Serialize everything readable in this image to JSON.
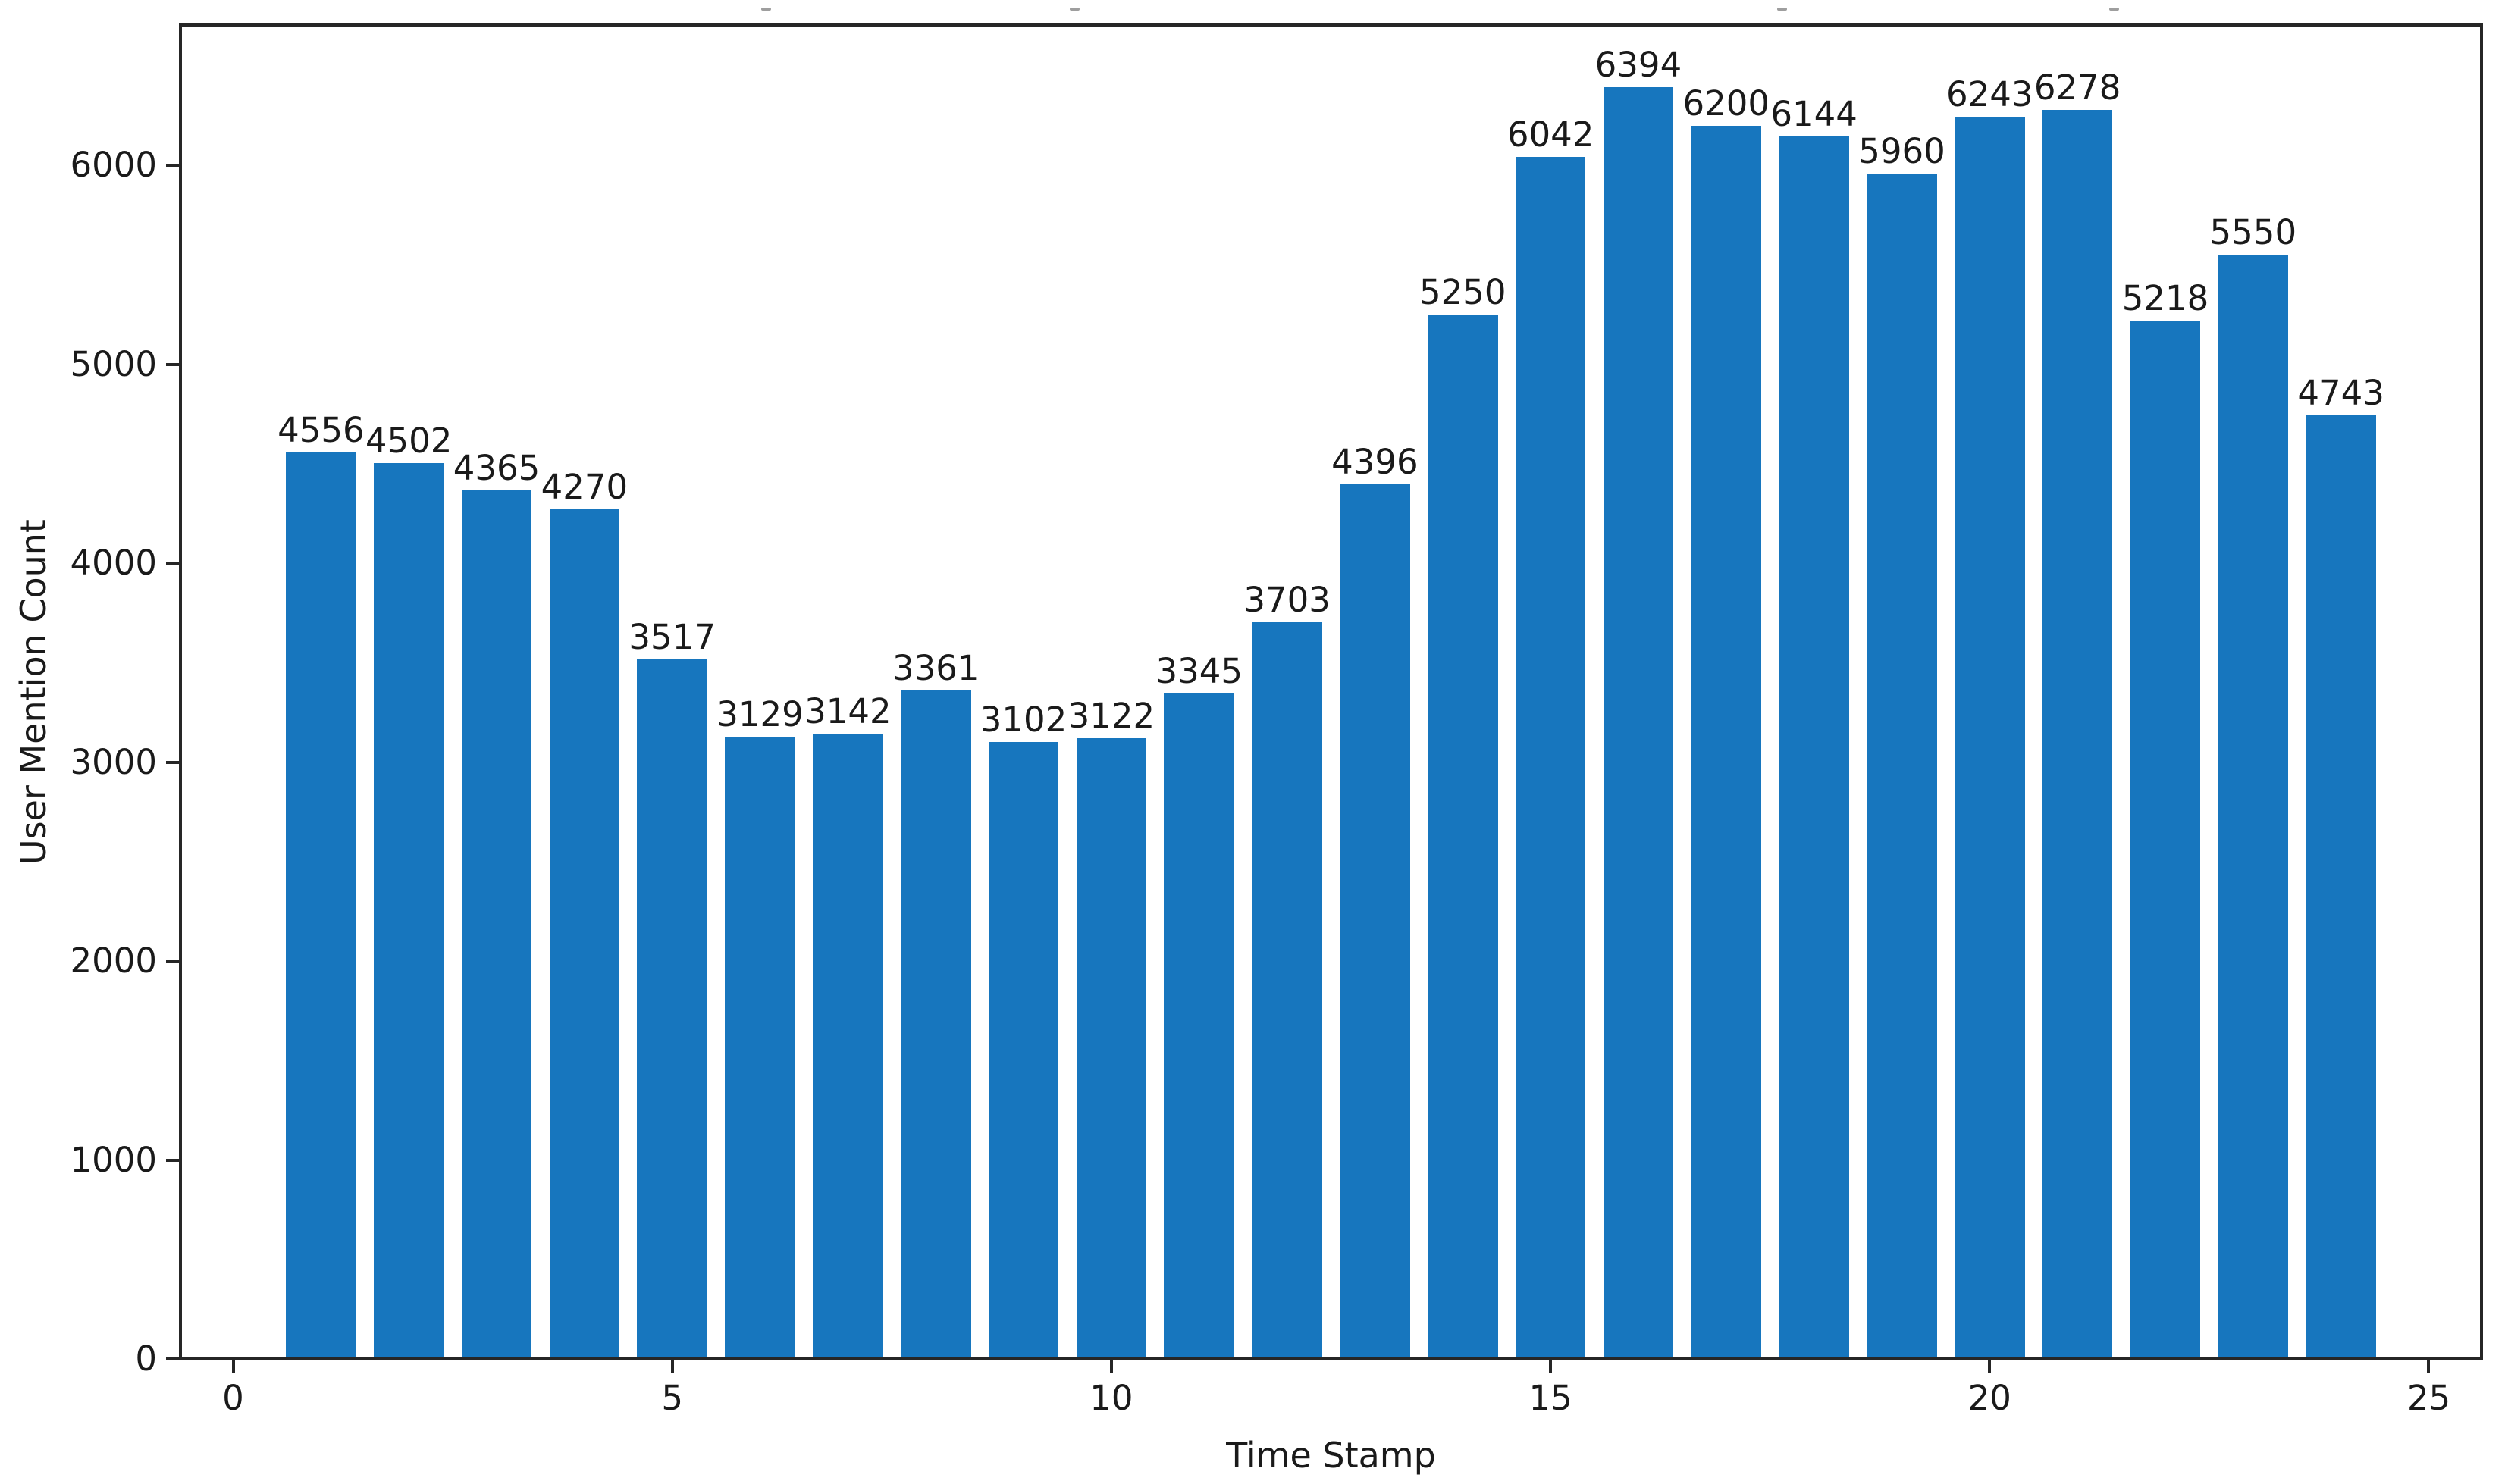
{
  "chart_data": {
    "type": "bar",
    "title": "",
    "xlabel": "Time Stamp",
    "ylabel": "User Mention Count",
    "categories": [
      1,
      2,
      3,
      4,
      5,
      6,
      7,
      8,
      9,
      10,
      11,
      12,
      13,
      14,
      15,
      16,
      17,
      18,
      19,
      20,
      21,
      22,
      23,
      24
    ],
    "values": [
      4556,
      4502,
      4365,
      4270,
      3517,
      3129,
      3142,
      3361,
      3102,
      3122,
      3345,
      3703,
      4396,
      5250,
      6042,
      6394,
      6200,
      6144,
      5960,
      6243,
      6278,
      5218,
      5550,
      4743
    ],
    "bar_labels": [
      "4556",
      "4502",
      "4365",
      "4270",
      "3517",
      "3129",
      "3142",
      "3361",
      "3102",
      "3122",
      "3345",
      "3703",
      "4396",
      "5250",
      "6042",
      "6394",
      "6200",
      "6144",
      "5960",
      "6243",
      "6278",
      "5218",
      "5550",
      "4743"
    ],
    "bar_width": 0.8,
    "bar_color": "#1776be",
    "x_ticks": [
      0,
      5,
      10,
      15,
      20,
      25
    ],
    "x_tick_labels": [
      "0",
      "5",
      "10",
      "15",
      "20",
      "25"
    ],
    "y_ticks": [
      0,
      1000,
      2000,
      3000,
      4000,
      5000,
      6000
    ],
    "y_tick_labels": [
      "0",
      "1000",
      "2000",
      "3000",
      "4000",
      "5000",
      "6000"
    ],
    "xlim": [
      -0.6,
      25.6
    ],
    "ylim": [
      0,
      6705
    ],
    "grid": false,
    "legend": null
  },
  "artifacts": {
    "top_edge_marks_x": [
      1010,
      1417,
      2350,
      2788
    ],
    "top_edge_marks_y": 10
  }
}
